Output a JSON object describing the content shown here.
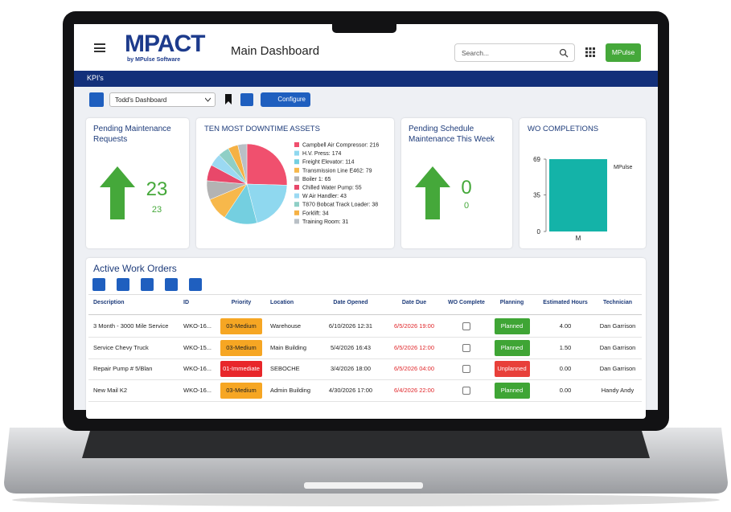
{
  "header": {
    "logo": "MPACT",
    "logo_tagline": "by MPulse Software",
    "title": "Main Dashboard",
    "search_placeholder": "Search...",
    "user_button": "MPulse"
  },
  "section_bar": "KPI's",
  "toolbar": {
    "dashboard": "Todd's Dashboard",
    "configure": "Configure"
  },
  "kpis": [
    {
      "title": "Pending Maintenance Requests",
      "value": 23,
      "subvalue": 23
    },
    {
      "title": "Pending Schedule Maintenance This Week",
      "value": 0,
      "subvalue": 0
    }
  ],
  "downtime_chart": {
    "type": "pie",
    "title": "TEN MOST DOWNTIME ASSETS",
    "labels": [
      "Campbell Air Compressor: 216",
      "H.V. Press: 174",
      "Freight Elevator: 114",
      "Transmission Line E462: 79",
      "Boiler 1: 65",
      "Chilled Water Pump: 55",
      "W Air Handler: 43",
      "T870 Bobcat Track Loader: 38",
      "Forklift: 34",
      "Training Room: 31"
    ],
    "values": [
      216,
      174,
      114,
      79,
      65,
      55,
      43,
      38,
      34,
      31
    ],
    "colors": [
      "#f0506e",
      "#8fd8ef",
      "#74cfe0",
      "#f7b84b",
      "#b3b3b3",
      "#e8486a",
      "#9bd9f2",
      "#8fcfc6",
      "#f5b144",
      "#b9c0c6"
    ]
  },
  "completions_chart": {
    "type": "bar",
    "title": "WO COMPLETIONS",
    "categories": [
      "M"
    ],
    "series": [
      {
        "name": "MPulse",
        "color": "#14b3a8",
        "values": [
          69
        ]
      }
    ],
    "ylim": [
      0,
      69
    ],
    "yticks": [
      0,
      35,
      69
    ]
  },
  "work_orders": {
    "title": "Active Work Orders",
    "columns": [
      "Description",
      "ID",
      "Priority",
      "Location",
      "Date Opened",
      "Date Due",
      "WO Complete",
      "Planning",
      "Estimated Hours",
      "Technician"
    ],
    "rows": [
      {
        "cells": [
          "3 Month - 3000 Mile Service",
          "WKO-16...",
          "03-Medium",
          "Warehouse",
          "6/10/2026 12:31",
          "6/5/2026 19:00",
          false,
          "Planned",
          "4.00",
          "Dan Garrison"
        ],
        "priority_color": "#f6a623",
        "planning_color": "#3fa535"
      },
      {
        "cells": [
          "Service Chevy Truck",
          "WKO-15...",
          "03-Medium",
          "Main Building",
          "5/4/2026 16:43",
          "6/5/2026 12:00",
          false,
          "Planned",
          "1.50",
          "Dan Garrison"
        ],
        "priority_color": "#f6a623",
        "planning_color": "#3fa535"
      },
      {
        "cells": [
          "Repair Pump # 5/Blan",
          "WKO-16...",
          "01-Immediate",
          "SEBOCHE",
          "3/4/2026 18:00",
          "6/5/2026 04:00",
          false,
          "Unplanned",
          "0.00",
          "Dan Garrison"
        ],
        "priority_color": "#e8262a",
        "planning_color": "#e8403a"
      },
      {
        "cells": [
          "New Mail K2",
          "WKO-16...",
          "03-Medium",
          "Admin Building",
          "4/30/2026 17:00",
          "6/4/2026 22:00",
          false,
          "Planned",
          "0.00",
          "Handy Andy"
        ],
        "priority_color": "#f6a623",
        "planning_color": "#3fa535"
      }
    ]
  }
}
